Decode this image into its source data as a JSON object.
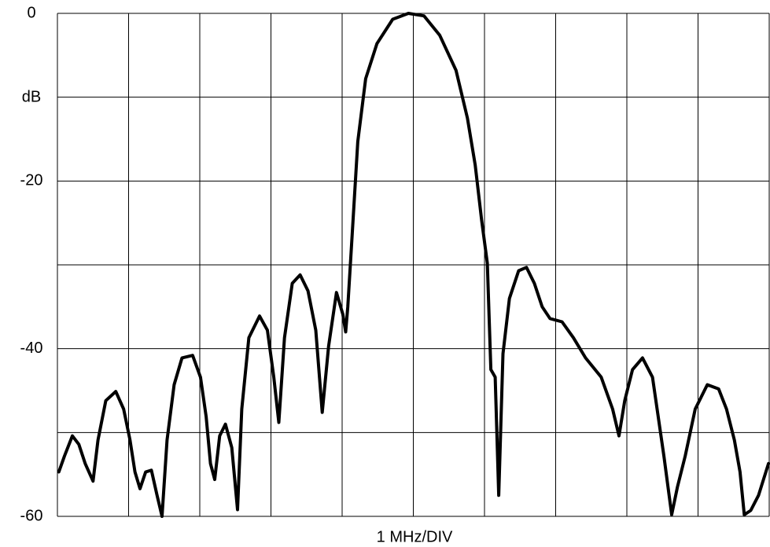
{
  "chart_data": {
    "type": "line",
    "ylabel": "dB",
    "xlabel": "1 MHz/DIV",
    "xlim": [
      0,
      10
    ],
    "ylim": [
      -60,
      0
    ],
    "yticks": [
      -60,
      -40,
      -20,
      0
    ],
    "xgrid": [
      0,
      1,
      2,
      3,
      4,
      5,
      6,
      7,
      8,
      9,
      10
    ],
    "ygrid": [
      -60,
      -50,
      -40,
      -30,
      -20,
      -10,
      0
    ],
    "series": [
      {
        "color": "#000000",
        "x": [
          0.02,
          0.1,
          0.21,
          0.3,
          0.39,
          0.5,
          0.57,
          0.68,
          0.82,
          0.93,
          1.02,
          1.09,
          1.16,
          1.24,
          1.32,
          1.4,
          1.47,
          1.54,
          1.64,
          1.75,
          1.9,
          2.01,
          2.09,
          2.15,
          2.21,
          2.28,
          2.36,
          2.45,
          2.53,
          2.59,
          2.69,
          2.84,
          2.95,
          3.04,
          3.11,
          3.19,
          3.3,
          3.41,
          3.52,
          3.63,
          3.72,
          3.81,
          3.92,
          4.01,
          4.05,
          4.08,
          4.14,
          4.22,
          4.33,
          4.49,
          4.71,
          4.93,
          5.15,
          5.37,
          5.6,
          5.76,
          5.87,
          5.96,
          6.04,
          6.09,
          6.15,
          6.2,
          6.26,
          6.35,
          6.48,
          6.59,
          6.7,
          6.81,
          6.92,
          7.09,
          7.25,
          7.42,
          7.64,
          7.8,
          7.89,
          7.97,
          8.08,
          8.22,
          8.36,
          8.52,
          8.63,
          8.71,
          8.82,
          8.96,
          9.13,
          9.29,
          9.4,
          9.51,
          9.59,
          9.65,
          9.74,
          9.85,
          9.99
        ],
        "values": [
          -54.7,
          -52.8,
          -50.4,
          -51.4,
          -53.7,
          -55.8,
          -50.9,
          -46.2,
          -45.1,
          -47.2,
          -50.9,
          -54.7,
          -56.7,
          -54.7,
          -54.5,
          -57.5,
          -60,
          -50.9,
          -44.3,
          -41.1,
          -40.8,
          -43.4,
          -48.1,
          -53.7,
          -55.6,
          -50.4,
          -49.0,
          -51.8,
          -59.2,
          -47.2,
          -38.7,
          -36.1,
          -37.8,
          -43.4,
          -48.8,
          -38.7,
          -32.2,
          -31.2,
          -33.1,
          -37.8,
          -47.6,
          -39.7,
          -33.3,
          -35.9,
          -38.0,
          -35.0,
          -26.5,
          -15.3,
          -7.8,
          -3.6,
          -0.7,
          0,
          -0.3,
          -2.6,
          -6.8,
          -12.5,
          -18.1,
          -24.7,
          -29.8,
          -42.5,
          -43.4,
          -57.5,
          -40.6,
          -34.0,
          -30.7,
          -30.3,
          -32.2,
          -35.0,
          -36.4,
          -36.8,
          -38.7,
          -41.1,
          -43.4,
          -47.2,
          -50.4,
          -46.2,
          -42.5,
          -41.1,
          -43.4,
          -52.8,
          -59.8,
          -56.5,
          -52.8,
          -47.2,
          -44.3,
          -44.8,
          -47.2,
          -50.9,
          -54.7,
          -59.8,
          -59.3,
          -57.5,
          -53.7
        ]
      }
    ]
  }
}
